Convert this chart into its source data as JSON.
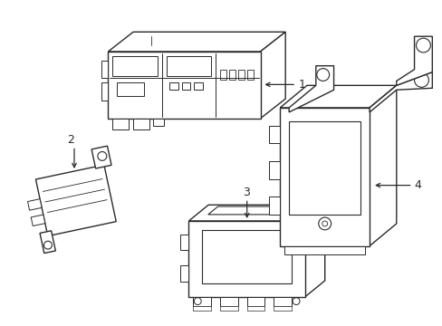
{
  "background_color": "#ffffff",
  "line_color": "#2a2a2a",
  "line_width": 1.0,
  "fig_width": 4.89,
  "fig_height": 3.6,
  "dpi": 100
}
